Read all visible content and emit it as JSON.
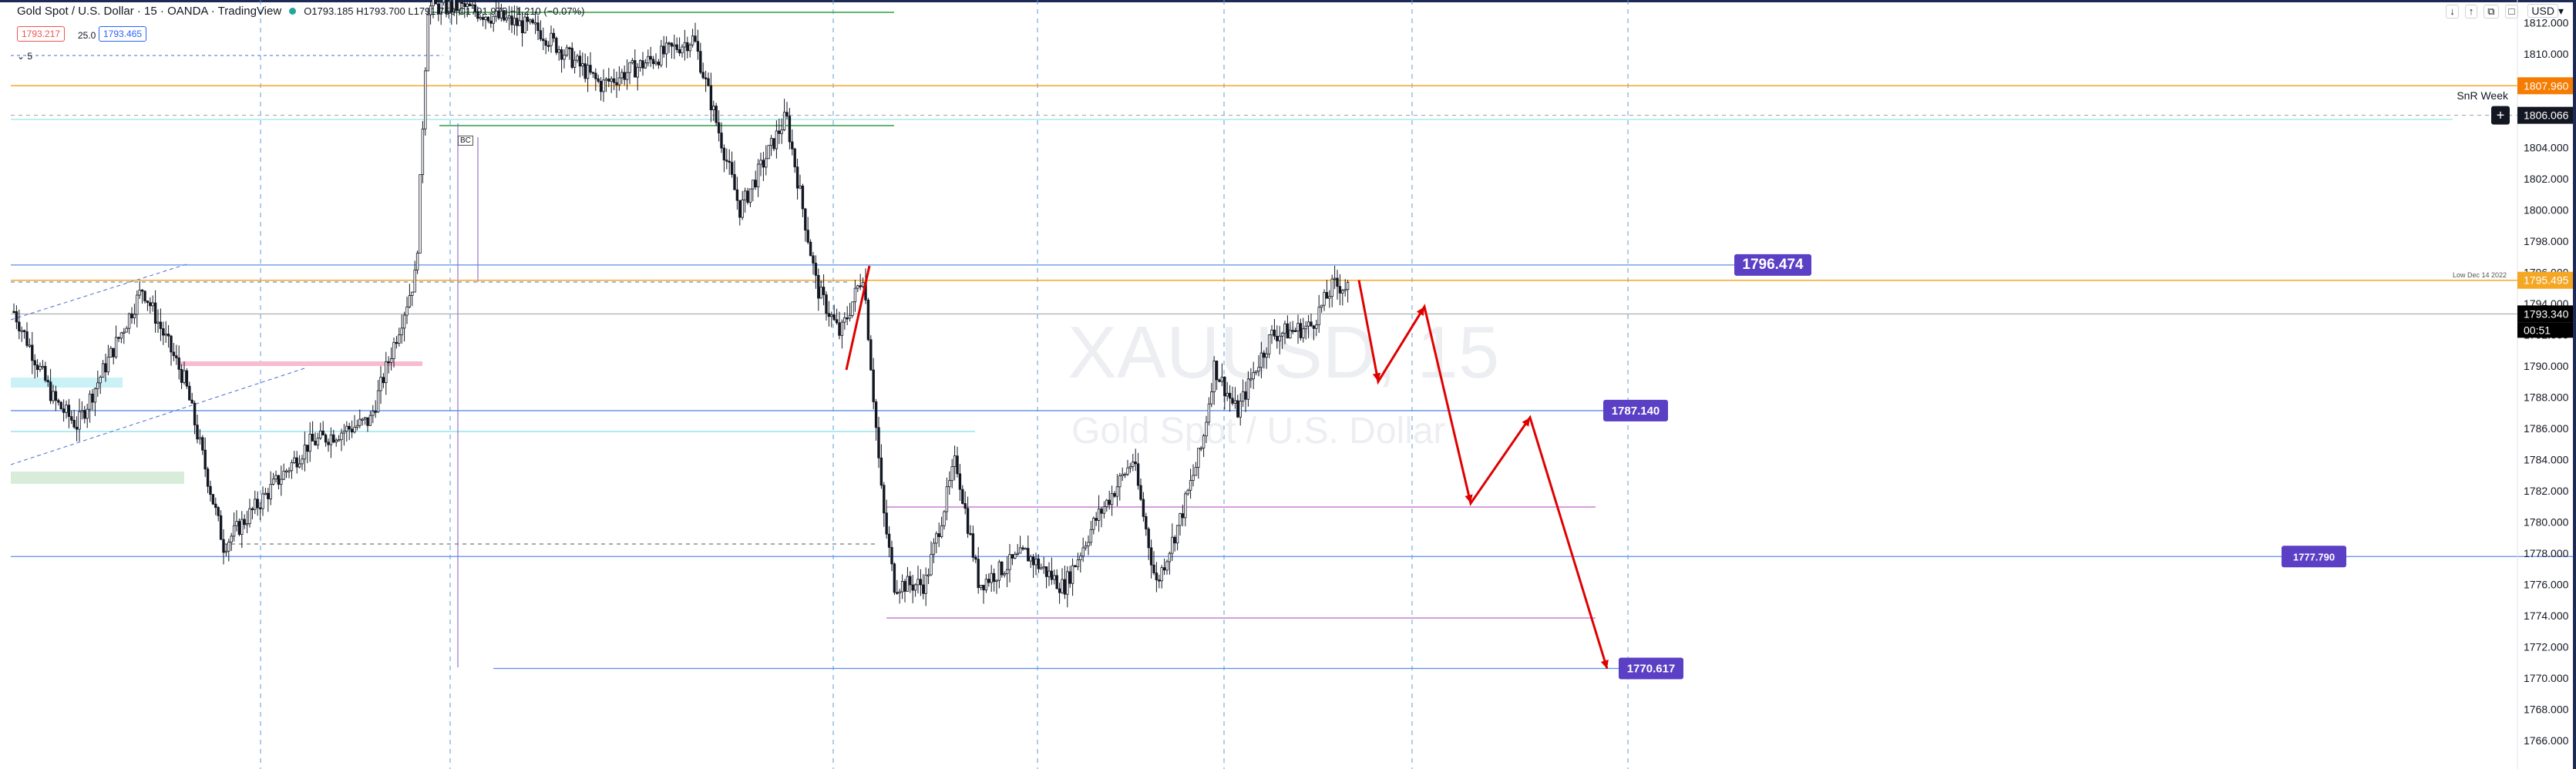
{
  "header": {
    "title": "Gold Spot / U.S. Dollar · 15 · OANDA · TradingView",
    "ohlc": "O1793.185 H1793.700 L1791.750 C1791.975 −1.210 (−0.07%)",
    "bid": "1793.217",
    "spread": "25.0",
    "ask": "1793.465",
    "interval_toggle": "5"
  },
  "toolbar": {
    "currency": "USD"
  },
  "watermark": {
    "symbol": "XAUUSD, 15",
    "description": "Gold Spot / U.S. Dollar"
  },
  "price_axis": {
    "ticks": [
      "1812.000",
      "1810.000",
      "1808.000",
      "1806.000",
      "1804.000",
      "1802.000",
      "1800.000",
      "1798.000",
      "1796.000",
      "1794.000",
      "1792.000",
      "1790.000",
      "1788.000",
      "1786.000",
      "1784.000",
      "1782.000",
      "1780.000",
      "1778.000",
      "1776.000",
      "1774.000",
      "1772.000",
      "1770.000",
      "1768.000",
      "1766.000"
    ]
  },
  "labels": {
    "snr_week": "SnR Week",
    "low_dec": "Low Dec 14 2022",
    "bc": "BC",
    "countdown": "00:51"
  },
  "chart_data": {
    "type": "candlestick",
    "symbol": "XAUUSD",
    "interval": "15",
    "ylim": [
      1765,
      1813
    ],
    "current_price": 1793.34,
    "levels": [
      {
        "value": 1807.96,
        "label": "1807.960",
        "color": "#f57c00"
      },
      {
        "value": 1806.066,
        "label": "1806.066",
        "color": "#131722"
      },
      {
        "value": 1796.474,
        "label": "1796.474",
        "color": "#5b3fc4"
      },
      {
        "value": 1795.495,
        "label": "1795.495",
        "color": "#f5a623"
      },
      {
        "value": 1793.34,
        "label": "1793.340",
        "color": "#131722"
      },
      {
        "value": 1787.14,
        "label": "1787.140",
        "color": "#5b3fc4"
      },
      {
        "value": 1777.79,
        "label": "1777.790",
        "color": "#5b3fc4"
      },
      {
        "value": 1770.617,
        "label": "1770.617",
        "color": "#5b3fc4"
      }
    ],
    "projection": [
      1795.5,
      1789.0,
      1793.8,
      1781.2,
      1786.7,
      1770.6
    ],
    "colors": {
      "up": "#ffffff",
      "down": "#131722",
      "projection": "#e00000",
      "label_bg": "#5b3fc4"
    }
  }
}
